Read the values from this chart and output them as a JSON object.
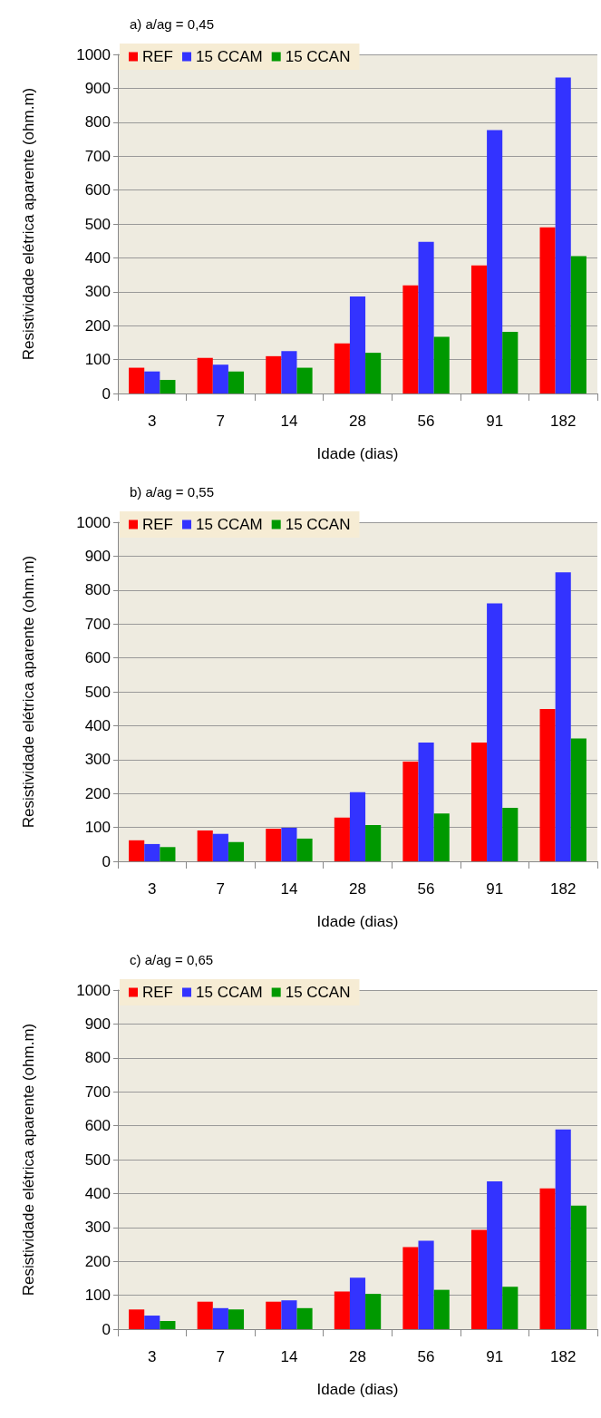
{
  "chart_data": [
    {
      "type": "bar",
      "title": "a) a/ag = 0,45",
      "xlabel": "Idade (dias)",
      "ylabel": "Resistividade elétrica aparente (ohm.m)",
      "categories": [
        "3",
        "7",
        "14",
        "28",
        "56",
        "91",
        "182"
      ],
      "series": [
        {
          "name": "REF",
          "color": "#ff0000",
          "values": [
            76,
            105,
            110,
            148,
            319,
            378,
            490
          ]
        },
        {
          "name": "15 CCAM",
          "color": "#3333ff",
          "values": [
            65,
            85,
            125,
            286,
            447,
            777,
            932
          ]
        },
        {
          "name": "15 CCAN",
          "color": "#009900",
          "values": [
            40,
            65,
            76,
            120,
            167,
            182,
            405
          ]
        }
      ],
      "ylim": [
        0,
        1000
      ],
      "yticks": [
        0,
        100,
        200,
        300,
        400,
        500,
        600,
        700,
        800,
        900,
        1000
      ],
      "grid": "y",
      "legend": "top left"
    },
    {
      "type": "bar",
      "title": "b) a/ag = 0,55",
      "xlabel": "Idade (dias)",
      "ylabel": "Resistividade elétrica aparente (ohm.m)",
      "categories": [
        "3",
        "7",
        "14",
        "28",
        "56",
        "91",
        "182"
      ],
      "series": [
        {
          "name": "REF",
          "color": "#ff0000",
          "values": [
            62,
            91,
            96,
            129,
            294,
            350,
            449
          ]
        },
        {
          "name": "15 CCAM",
          "color": "#3333ff",
          "values": [
            51,
            81,
            99,
            204,
            350,
            761,
            852
          ]
        },
        {
          "name": "15 CCAN",
          "color": "#009900",
          "values": [
            42,
            57,
            67,
            107,
            141,
            158,
            362
          ]
        }
      ],
      "ylim": [
        0,
        1000
      ],
      "yticks": [
        0,
        100,
        200,
        300,
        400,
        500,
        600,
        700,
        800,
        900,
        1000
      ],
      "grid": "y",
      "legend": "top left"
    },
    {
      "type": "bar",
      "title": "c) a/ag = 0,65",
      "xlabel": "Idade (dias)",
      "ylabel": "Resistividade elétrica aparente (ohm.m)",
      "categories": [
        "3",
        "7",
        "14",
        "28",
        "56",
        "91",
        "182"
      ],
      "series": [
        {
          "name": "REF",
          "color": "#ff0000",
          "values": [
            58,
            81,
            81,
            111,
            242,
            293,
            415
          ]
        },
        {
          "name": "15 CCAM",
          "color": "#3333ff",
          "values": [
            40,
            62,
            85,
            152,
            261,
            436,
            589
          ]
        },
        {
          "name": "15 CCAN",
          "color": "#009900",
          "values": [
            24,
            58,
            62,
            104,
            116,
            125,
            364
          ]
        }
      ],
      "ylim": [
        0,
        1000
      ],
      "yticks": [
        0,
        100,
        200,
        300,
        400,
        500,
        600,
        700,
        800,
        900,
        1000
      ],
      "grid": "y",
      "legend": "top left"
    }
  ]
}
